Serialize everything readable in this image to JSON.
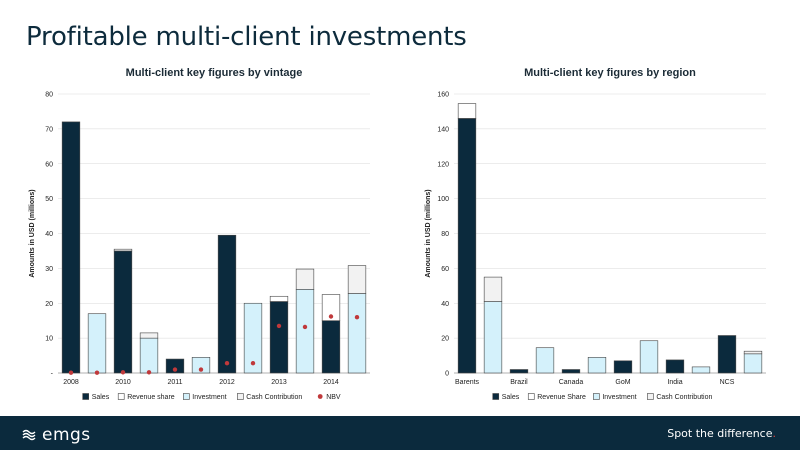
{
  "slide": {
    "title": "Profitable multi-client investments"
  },
  "footer": {
    "logo_text": "emgs",
    "tagline": "Spot the difference",
    "tagline_dot": "."
  },
  "colors": {
    "sales": "#0b2a3d",
    "revenue_share": "#ffffff",
    "investment": "#d4f1fb",
    "cash_contribution": "#f2f2f2",
    "nbv": "#c0393b",
    "outline": "#444444",
    "grid": "#d9d9d9"
  },
  "chart_data": [
    {
      "type": "bar",
      "title": "Multi-client key figures by vintage",
      "ylabel": "Amounts in USD (millions)",
      "ylim": [
        0,
        80
      ],
      "yticks": [
        0,
        10,
        20,
        30,
        40,
        50,
        60,
        70,
        80
      ],
      "ytick_labels": [
        "-",
        "10",
        "20",
        "30",
        "40",
        "50",
        "60",
        "70",
        "80"
      ],
      "grid": true,
      "legend_position": "bottom",
      "categories": [
        "2008",
        "",
        "2010",
        "",
        "2011",
        "",
        "2012",
        "",
        "2013",
        "",
        "2014",
        ""
      ],
      "bars": [
        {
          "group": "2008",
          "kind": "sales",
          "sales": 72,
          "revenue_share": 0
        },
        {
          "group": "2008",
          "kind": "investment",
          "investment": 17,
          "cash_contribution": 0
        },
        {
          "group": "2010",
          "kind": "sales",
          "sales": 35,
          "revenue_share": 0.5
        },
        {
          "group": "2010",
          "kind": "investment",
          "investment": 10,
          "cash_contribution": 1.5
        },
        {
          "group": "2011",
          "kind": "sales",
          "sales": 4,
          "revenue_share": 0
        },
        {
          "group": "2011",
          "kind": "investment",
          "investment": 4.5,
          "cash_contribution": 0
        },
        {
          "group": "2012",
          "kind": "sales",
          "sales": 39.5,
          "revenue_share": 0
        },
        {
          "group": "2012",
          "kind": "investment",
          "investment": 20,
          "cash_contribution": 0
        },
        {
          "group": "2013",
          "kind": "sales",
          "sales": 20.5,
          "revenue_share": 1.5
        },
        {
          "group": "2013",
          "kind": "investment",
          "investment": 24,
          "cash_contribution": 5.8
        },
        {
          "group": "2014",
          "kind": "sales",
          "sales": 15,
          "revenue_share": 7.5
        },
        {
          "group": "2014",
          "kind": "investment",
          "investment": 22.8,
          "cash_contribution": 8
        }
      ],
      "nbv_points": [
        0.1,
        0.1,
        0.2,
        0.2,
        1,
        1,
        2.8,
        2.8,
        13.5,
        13.2,
        16.2,
        16
      ],
      "legend": [
        {
          "key": "sales",
          "label": "Sales",
          "shape": "square"
        },
        {
          "key": "revenue_share",
          "label": "Revenue share",
          "shape": "square"
        },
        {
          "key": "investment",
          "label": "Investment",
          "shape": "square"
        },
        {
          "key": "cash_contribution",
          "label": "Cash Contribution",
          "shape": "square"
        },
        {
          "key": "nbv",
          "label": "NBV",
          "shape": "circle"
        }
      ]
    },
    {
      "type": "bar",
      "title": "Multi-client key figures by region",
      "ylabel": "Amounts in USD (millions)",
      "ylim": [
        0,
        160
      ],
      "yticks": [
        0,
        20,
        40,
        60,
        80,
        100,
        120,
        140,
        160
      ],
      "ytick_labels": [
        "0",
        "20",
        "40",
        "60",
        "80",
        "100",
        "120",
        "140",
        "160"
      ],
      "grid": true,
      "legend_position": "bottom",
      "categories": [
        "Barents",
        "",
        "Brazil",
        "",
        "Canada",
        "",
        "GoM",
        "",
        "India",
        "",
        "NCS",
        ""
      ],
      "bars": [
        {
          "group": "Barents",
          "kind": "sales",
          "sales": 146,
          "revenue_share": 8.5
        },
        {
          "group": "Barents",
          "kind": "investment",
          "investment": 41,
          "cash_contribution": 14
        },
        {
          "group": "Brazil",
          "kind": "sales",
          "sales": 2,
          "revenue_share": 0
        },
        {
          "group": "Brazil",
          "kind": "investment",
          "investment": 14.5,
          "cash_contribution": 0
        },
        {
          "group": "Canada",
          "kind": "sales",
          "sales": 2,
          "revenue_share": 0
        },
        {
          "group": "Canada",
          "kind": "investment",
          "investment": 9,
          "cash_contribution": 0
        },
        {
          "group": "GoM",
          "kind": "sales",
          "sales": 7,
          "revenue_share": 0
        },
        {
          "group": "GoM",
          "kind": "investment",
          "investment": 18.5,
          "cash_contribution": 0
        },
        {
          "group": "India",
          "kind": "sales",
          "sales": 7.5,
          "revenue_share": 0
        },
        {
          "group": "India",
          "kind": "investment",
          "investment": 3.5,
          "cash_contribution": 0
        },
        {
          "group": "NCS",
          "kind": "sales",
          "sales": 21.5,
          "revenue_share": 0
        },
        {
          "group": "NCS",
          "kind": "investment",
          "investment": 11,
          "cash_contribution": 1.5
        }
      ],
      "nbv_points": [],
      "legend": [
        {
          "key": "sales",
          "label": "Sales",
          "shape": "square"
        },
        {
          "key": "revenue_share",
          "label": "Revenue Share",
          "shape": "square"
        },
        {
          "key": "investment",
          "label": "Investment",
          "shape": "square"
        },
        {
          "key": "cash_contribution",
          "label": "Cash Contribution",
          "shape": "square"
        }
      ]
    }
  ]
}
